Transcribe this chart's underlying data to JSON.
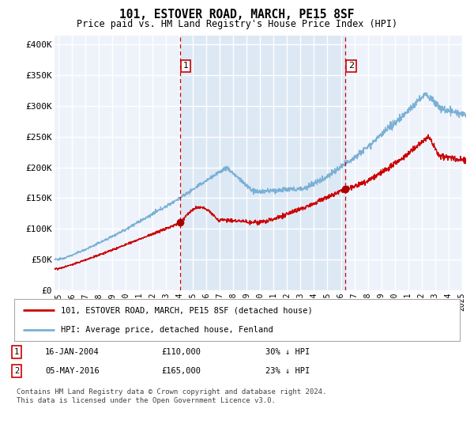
{
  "title": "101, ESTOVER ROAD, MARCH, PE15 8SF",
  "subtitle": "Price paid vs. HM Land Registry's House Price Index (HPI)",
  "ylabel_ticks": [
    "£0",
    "£50K",
    "£100K",
    "£150K",
    "£200K",
    "£250K",
    "£300K",
    "£350K",
    "£400K"
  ],
  "ytick_values": [
    0,
    50000,
    100000,
    150000,
    200000,
    250000,
    300000,
    350000,
    400000
  ],
  "ylim": [
    0,
    415000
  ],
  "xlim_start": 1994.7,
  "xlim_end": 2025.3,
  "sale1_x": 2004.04,
  "sale1_y": 110000,
  "sale1_label": "1",
  "sale2_x": 2016.34,
  "sale2_y": 165000,
  "sale2_label": "2",
  "red_line_color": "#cc0000",
  "blue_line_color": "#7ab0d4",
  "sale_marker_color": "#aa0000",
  "vline_color": "#cc0000",
  "shade_color": "#dde8f5",
  "hatch_color": "#cccccc",
  "legend_red_label": "101, ESTOVER ROAD, MARCH, PE15 8SF (detached house)",
  "legend_blue_label": "HPI: Average price, detached house, Fenland",
  "footnote": "Contains HM Land Registry data © Crown copyright and database right 2024.\nThis data is licensed under the Open Government Licence v3.0.",
  "background_color": "#ffffff",
  "plot_bg_color": "#eef3fb",
  "grid_color": "#ffffff"
}
